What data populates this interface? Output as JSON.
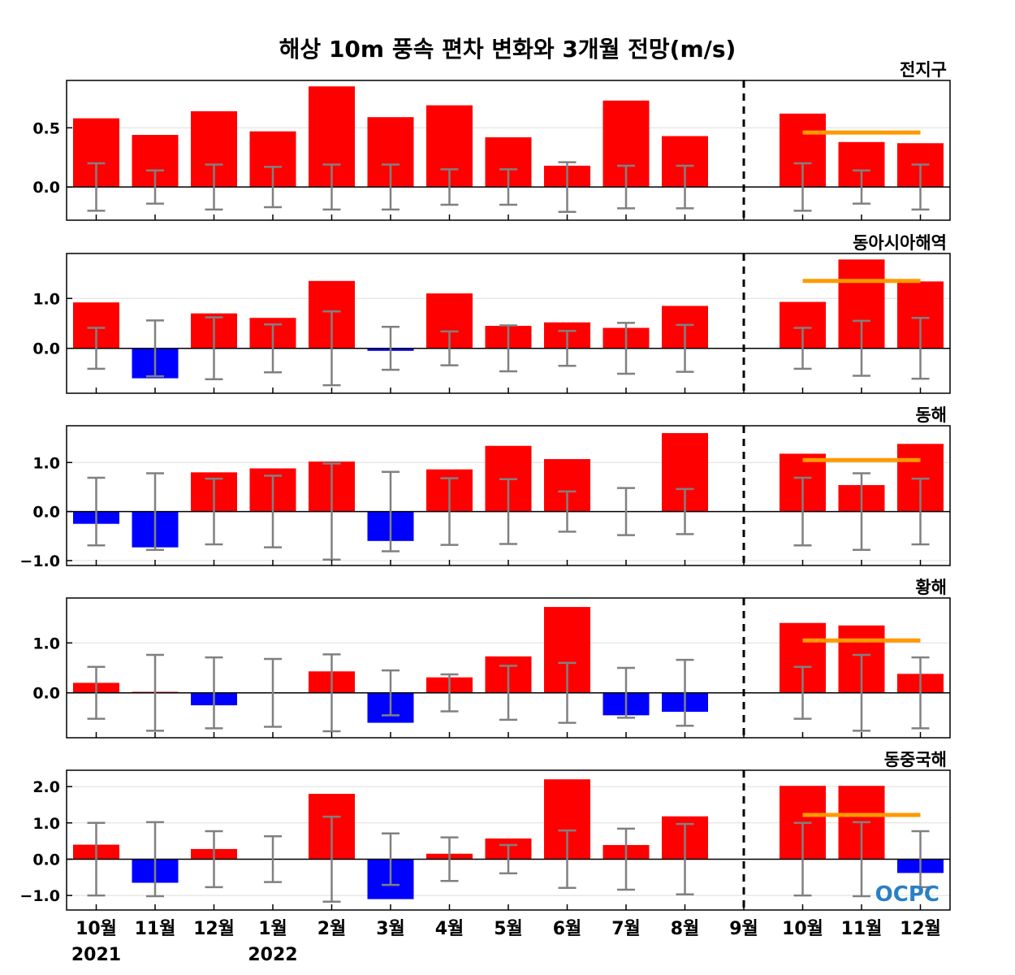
{
  "chart_data": {
    "type": "bar",
    "title": "해상 10m 풍속 편차 변화와 3개월 전망(m/s)",
    "categories": [
      "10월",
      "11월",
      "12월",
      "1월",
      "2월",
      "3월",
      "4월",
      "5월",
      "6월",
      "7월",
      "8월",
      "9월",
      "10월",
      "11월",
      "12월"
    ],
    "year_labels": [
      {
        "category_index": 0,
        "label": "2021"
      },
      {
        "category_index": 3,
        "label": "2022"
      }
    ],
    "observed_end_index": 11,
    "colors": {
      "positive": "#ff0000",
      "negative": "#0000ff",
      "error_bar": "#808080",
      "forecast_line": "#ff9900",
      "divider": "#000000",
      "logo": "#2b7fc4"
    },
    "panels": [
      {
        "name": "전지구",
        "ylim": [
          -0.28,
          0.9
        ],
        "yticks": [
          0.0,
          0.5
        ],
        "ytick_labels": [
          "0.0",
          "0.5"
        ],
        "values": [
          0.58,
          0.44,
          0.64,
          0.47,
          0.85,
          0.59,
          0.69,
          0.42,
          0.18,
          0.73,
          0.43,
          0.0,
          0.62,
          0.38,
          0.37
        ],
        "error": [
          0.2,
          0.14,
          0.19,
          0.17,
          0.19,
          0.19,
          0.15,
          0.15,
          0.21,
          0.18,
          0.18,
          0,
          0.2,
          0.14,
          0.19
        ],
        "forecast_line": {
          "from_index": 12,
          "to_index": 14,
          "value": 0.46
        }
      },
      {
        "name": "동아시아해역",
        "ylim": [
          -0.9,
          1.9
        ],
        "yticks": [
          0.0,
          1.0
        ],
        "ytick_labels": [
          "0.0",
          "1.0"
        ],
        "values": [
          0.92,
          -0.6,
          0.7,
          0.61,
          1.35,
          -0.05,
          1.1,
          0.45,
          0.52,
          0.41,
          0.85,
          0.0,
          0.93,
          1.78,
          1.34
        ],
        "error": [
          0.41,
          0.56,
          0.62,
          0.48,
          0.74,
          0.43,
          0.34,
          0.46,
          0.35,
          0.51,
          0.47,
          0,
          0.41,
          0.55,
          0.61
        ],
        "forecast_line": {
          "from_index": 12,
          "to_index": 14,
          "value": 1.35
        }
      },
      {
        "name": "동해",
        "ylim": [
          -1.1,
          1.75
        ],
        "yticks": [
          -1.0,
          0.0,
          1.0
        ],
        "ytick_labels": [
          "−1.0",
          "0.0",
          "1.0"
        ],
        "values": [
          -0.25,
          -0.73,
          0.8,
          0.88,
          1.02,
          -0.6,
          0.86,
          1.34,
          1.07,
          0.0,
          1.6,
          0.0,
          1.18,
          0.54,
          1.38
        ],
        "error": [
          0.69,
          0.78,
          0.67,
          0.73,
          0.98,
          0.81,
          0.68,
          0.66,
          0.41,
          0.48,
          0.46,
          0,
          0.69,
          0.78,
          0.67
        ],
        "forecast_line": {
          "from_index": 12,
          "to_index": 14,
          "value": 1.05
        }
      },
      {
        "name": "황해",
        "ylim": [
          -0.9,
          1.9
        ],
        "yticks": [
          0.0,
          1.0
        ],
        "ytick_labels": [
          "0.0",
          "1.0"
        ],
        "values": [
          0.2,
          0.02,
          -0.25,
          0.0,
          0.43,
          -0.6,
          0.31,
          0.73,
          1.72,
          -0.45,
          -0.38,
          0.0,
          1.4,
          1.35,
          0.38
        ],
        "error": [
          0.52,
          0.76,
          0.71,
          0.68,
          0.77,
          0.45,
          0.37,
          0.54,
          0.6,
          0.5,
          0.66,
          0,
          0.52,
          0.76,
          0.71
        ],
        "forecast_line": {
          "from_index": 12,
          "to_index": 14,
          "value": 1.05
        }
      },
      {
        "name": "동중국해",
        "ylim": [
          -1.4,
          2.45
        ],
        "yticks": [
          -1.0,
          0.0,
          1.0,
          2.0
        ],
        "ytick_labels": [
          "−1.0",
          "0.0",
          "1.0",
          "2.0"
        ],
        "values": [
          0.4,
          -0.65,
          0.28,
          0.0,
          1.8,
          -1.1,
          0.15,
          0.57,
          2.2,
          0.39,
          1.18,
          0.0,
          2.02,
          2.02,
          -0.38
        ],
        "error": [
          1.0,
          1.02,
          0.77,
          0.63,
          1.17,
          0.71,
          0.6,
          0.39,
          0.79,
          0.84,
          0.97,
          0,
          1.0,
          1.02,
          0.77
        ],
        "forecast_line": {
          "from_index": 12,
          "to_index": 14,
          "value": 1.22
        }
      }
    ]
  },
  "logo": {
    "text": "OCPC"
  }
}
